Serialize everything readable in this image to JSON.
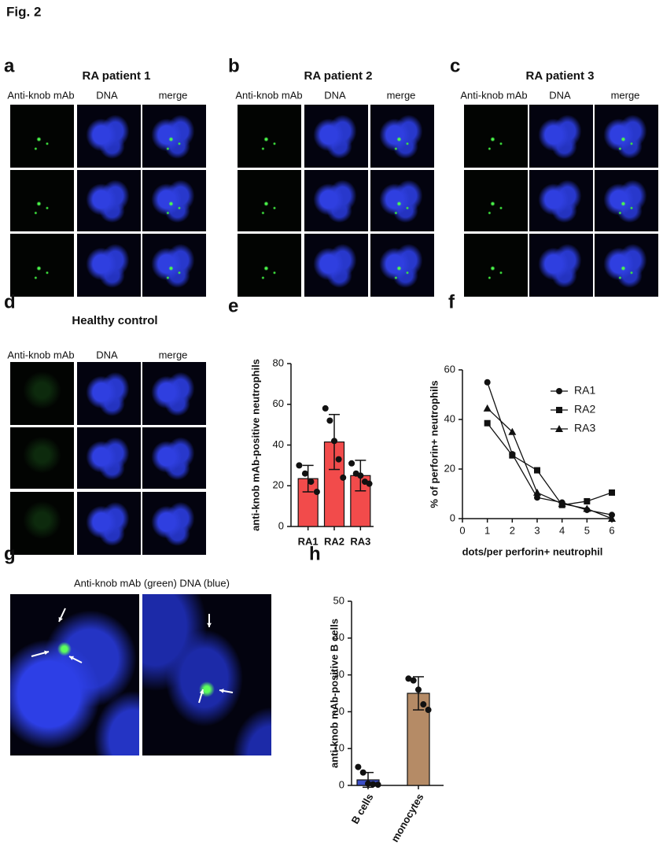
{
  "figure_label": "Fig. 2",
  "image_panels": [
    {
      "letter": "a",
      "title": "RA patient 1",
      "columns": [
        "Anti-knob mAb",
        "DNA",
        "merge"
      ]
    },
    {
      "letter": "b",
      "title": "RA patient 2",
      "columns": [
        "Anti-knob mAb",
        "DNA",
        "merge"
      ]
    },
    {
      "letter": "c",
      "title": "RA patient 3",
      "columns": [
        "Anti-knob mAb",
        "DNA",
        "merge"
      ]
    },
    {
      "letter": "d",
      "title": "Healthy control",
      "columns": [
        "Anti-knob mAb",
        "DNA",
        "merge"
      ]
    }
  ],
  "panel_g": {
    "letter": "g",
    "caption": "Anti-knob mAb (green) DNA (blue)"
  },
  "chart_data": [
    {
      "type": "bar",
      "panel_label": "e",
      "categories": [
        "RA1",
        "RA2",
        "RA3"
      ],
      "values": [
        23.5,
        41.5,
        25
      ],
      "errors": [
        6.5,
        13.5,
        7.5
      ],
      "points": [
        [
          30,
          26,
          22,
          17
        ],
        [
          58,
          52,
          42,
          33,
          24
        ],
        [
          31,
          26,
          25,
          22,
          21
        ]
      ],
      "colors": [
        "#f24b4b",
        "#f24b4b",
        "#f24b4b"
      ],
      "ylabel": "anti-knob mAb-positive neutrophils",
      "ylim": [
        0,
        80
      ],
      "yticks": [
        0,
        20,
        40,
        60,
        80
      ]
    },
    {
      "type": "line",
      "panel_label": "f",
      "x": [
        1,
        2,
        3,
        4,
        5,
        6
      ],
      "series": [
        {
          "name": "RA1",
          "marker": "circle",
          "color": "#111111",
          "values": [
            55,
            26,
            8.5,
            6.5,
            3.5,
            1.5
          ]
        },
        {
          "name": "RA2",
          "marker": "square",
          "color": "#111111",
          "values": [
            38.5,
            25.5,
            19.5,
            5.5,
            7,
            10.5
          ]
        },
        {
          "name": "RA3",
          "marker": "triangle",
          "color": "#111111",
          "values": [
            44.5,
            35,
            10.5,
            6,
            4,
            0
          ]
        }
      ],
      "xlabel": "dots/per perforin+ neutrophil",
      "ylabel": "% of perforin+ neutrophils",
      "xlim": [
        0,
        6
      ],
      "xticks": [
        0,
        1,
        2,
        3,
        4,
        5,
        6
      ],
      "ylim": [
        0,
        60
      ],
      "yticks": [
        0,
        20,
        40,
        60
      ]
    },
    {
      "type": "bar",
      "panel_label": "h",
      "categories": [
        "B cells",
        "monocytes"
      ],
      "values": [
        1.5,
        25
      ],
      "errors": [
        2,
        4.5
      ],
      "points": [
        [
          5,
          3.5,
          0.5,
          0.3,
          0.2
        ],
        [
          29,
          28.5,
          26,
          22,
          20.5
        ]
      ],
      "colors": [
        "#3b4ec6",
        "#b58b66"
      ],
      "ylabel": "anti-knob mAb-positive B cells",
      "ylim": [
        0,
        50
      ],
      "yticks": [
        0,
        10,
        20,
        30,
        40,
        50
      ]
    }
  ]
}
